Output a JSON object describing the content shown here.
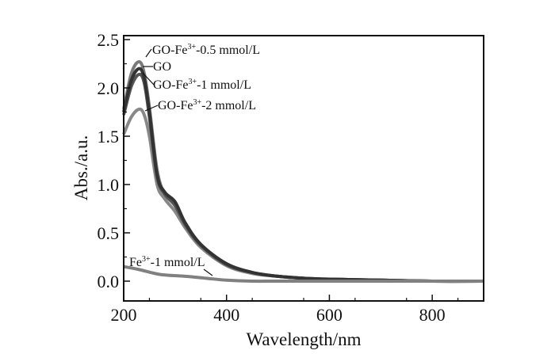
{
  "chart_data": {
    "type": "line",
    "title": "",
    "xlabel": "Wavelength/nm",
    "ylabel": "Abs./a.u.",
    "xlim": [
      200,
      900
    ],
    "ylim": [
      -0.2,
      2.55
    ],
    "xticks": [
      200,
      400,
      600,
      800
    ],
    "xtick_labels": [
      "200",
      "400",
      "600",
      "800"
    ],
    "yticks": [
      0.0,
      0.5,
      1.0,
      1.5,
      2.0,
      2.5
    ],
    "ytick_labels": [
      "0.0",
      "0.5",
      "1.0",
      "1.5",
      "2.0",
      "2.5"
    ],
    "grid": false,
    "legend": "inline annotations",
    "series": [
      {
        "name": "GO-Fe3+-0.5 mmol/L",
        "label_main": "GO-Fe",
        "label_sup": "3+",
        "label_tail": "-0.5 mmol/L",
        "color": "#7a7a7a",
        "x": [
          200,
          215,
          230,
          240,
          250,
          265,
          280,
          300,
          320,
          350,
          400,
          450,
          500,
          550,
          600,
          700,
          800,
          900
        ],
        "y": [
          1.78,
          2.15,
          2.27,
          2.15,
          1.8,
          1.15,
          0.9,
          0.8,
          0.6,
          0.38,
          0.18,
          0.09,
          0.05,
          0.03,
          0.02,
          0.01,
          0.0,
          0.0
        ]
      },
      {
        "name": "GO",
        "label_main": "GO",
        "label_sup": "",
        "label_tail": "",
        "color": "#333333",
        "x": [
          200,
          215,
          230,
          240,
          250,
          265,
          280,
          300,
          320,
          350,
          400,
          450,
          500,
          550,
          600,
          700,
          800,
          900
        ],
        "y": [
          1.75,
          2.08,
          2.2,
          2.1,
          1.75,
          1.1,
          0.92,
          0.82,
          0.6,
          0.38,
          0.18,
          0.09,
          0.05,
          0.03,
          0.02,
          0.01,
          0.0,
          0.0
        ]
      },
      {
        "name": "GO-Fe3+-1 mmol/L",
        "label_main": "GO-Fe",
        "label_sup": "3+",
        "label_tail": "-1 mmol/L",
        "color": "#555555",
        "x": [
          200,
          215,
          230,
          240,
          250,
          265,
          280,
          300,
          320,
          350,
          400,
          450,
          500,
          550,
          600,
          700,
          800,
          900
        ],
        "y": [
          1.72,
          2.02,
          2.14,
          2.05,
          1.7,
          1.08,
          0.9,
          0.78,
          0.58,
          0.37,
          0.17,
          0.09,
          0.05,
          0.03,
          0.02,
          0.01,
          0.0,
          0.0
        ]
      },
      {
        "name": "GO-Fe3+-2 mmol/L",
        "label_main": "GO-Fe",
        "label_sup": "3+",
        "label_tail": "-2 mmol/L",
        "color": "#888888",
        "x": [
          200,
          215,
          230,
          240,
          250,
          265,
          280,
          300,
          320,
          350,
          400,
          450,
          500,
          550,
          600,
          700,
          800,
          900
        ],
        "y": [
          1.52,
          1.7,
          1.78,
          1.72,
          1.5,
          1.0,
          0.85,
          0.72,
          0.55,
          0.35,
          0.16,
          0.08,
          0.05,
          0.03,
          0.02,
          0.01,
          0.0,
          0.0
        ]
      },
      {
        "name": "Fe3+-1 mmol/L",
        "label_main": "Fe",
        "label_sup": "3+",
        "label_tail": "-1 mmol/L",
        "color": "#808080",
        "x": [
          200,
          230,
          270,
          320,
          360,
          400,
          450,
          500,
          600,
          700,
          800,
          900
        ],
        "y": [
          0.15,
          0.12,
          0.07,
          0.05,
          0.03,
          0.01,
          0.0,
          0.0,
          0.0,
          0.0,
          0.0,
          0.0
        ]
      }
    ]
  }
}
